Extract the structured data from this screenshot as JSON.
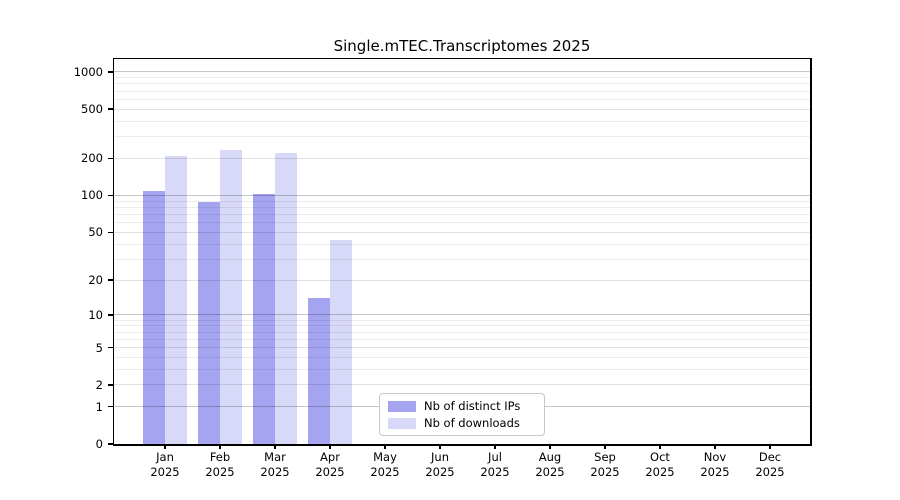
{
  "title": "Single.mTEC.Transcriptomes 2025",
  "chart_data": {
    "type": "bar",
    "title": "Single.mTEC.Transcriptomes 2025",
    "xlabel": "",
    "ylabel": "",
    "categories": [
      "Jan 2025",
      "Feb 2025",
      "Mar 2025",
      "Apr 2025",
      "May 2025",
      "Jun 2025",
      "Jul 2025",
      "Aug 2025",
      "Sep 2025",
      "Oct 2025",
      "Nov 2025",
      "Dec 2025"
    ],
    "month_labels": [
      "Jan",
      "Feb",
      "Mar",
      "Apr",
      "May",
      "Jun",
      "Jul",
      "Aug",
      "Sep",
      "Oct",
      "Nov",
      "Dec"
    ],
    "year_label": "2025",
    "series": [
      {
        "name": "Nb of distinct IPs",
        "color": "#a4a4f0",
        "values": [
          108,
          89,
          102,
          14,
          null,
          null,
          null,
          null,
          null,
          null,
          null,
          null
        ]
      },
      {
        "name": "Nb of downloads",
        "color": "#d8d8f8",
        "values": [
          210,
          234,
          221,
          43,
          null,
          null,
          null,
          null,
          null,
          null,
          null,
          null
        ]
      }
    ],
    "yscale": "log10(1+x)",
    "ytick_values": [
      0,
      1,
      2,
      5,
      10,
      20,
      50,
      100,
      200,
      500,
      1000
    ],
    "ytick_major_gridlines": [
      1,
      10,
      100,
      1000
    ],
    "ytick_minor_labeled": [
      2,
      5,
      20,
      50,
      200,
      500
    ],
    "ylim": [
      0,
      1270
    ],
    "grid": true,
    "legend_position": "lower center",
    "legend": {
      "items": [
        {
          "label": "Nb of distinct IPs",
          "swatch_color": "#a4a4f0"
        },
        {
          "label": "Nb of downloads",
          "swatch_color": "#d8d8f8"
        }
      ]
    }
  }
}
